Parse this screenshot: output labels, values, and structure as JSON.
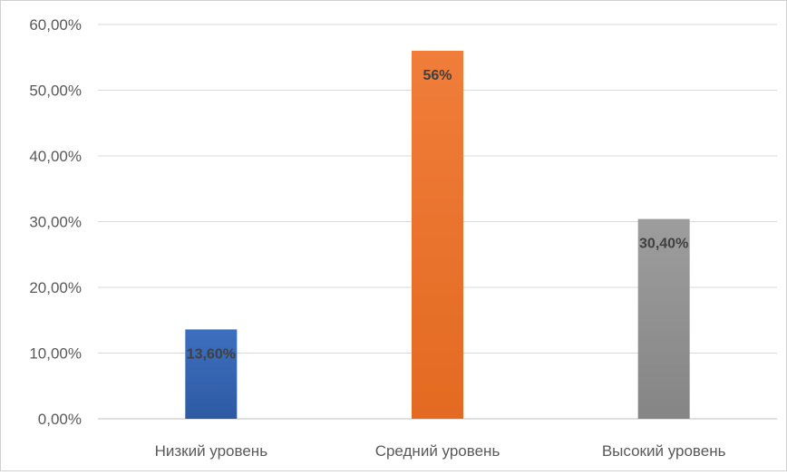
{
  "chart_data": {
    "type": "bar",
    "title": "",
    "xlabel": "",
    "ylabel": "",
    "categories": [
      "Низкий уровень",
      "Средний уровень",
      "Высокий уровень"
    ],
    "values": [
      13.6,
      56,
      30.4
    ],
    "data_labels": [
      "13,60%",
      "56%",
      "30,40%"
    ],
    "ylim": [
      0,
      60
    ],
    "yticks": [
      0,
      10,
      20,
      30,
      40,
      50,
      60
    ],
    "ytick_labels": [
      "0,00%",
      "10,00%",
      "20,00%",
      "30,00%",
      "40,00%",
      "50,00%",
      "60,00%"
    ],
    "grid": true,
    "legend": "none",
    "colors": {
      "bars": [
        "#3d6fbf",
        "#f07d3a",
        "#9d9d9d"
      ],
      "bar_gradients_dark": [
        "#2e5aa3",
        "#e36a21",
        "#858585"
      ],
      "grid": "#d9d9d9",
      "axis": "#bfbfbf",
      "text": "#595959",
      "data_label": "#404040"
    }
  }
}
